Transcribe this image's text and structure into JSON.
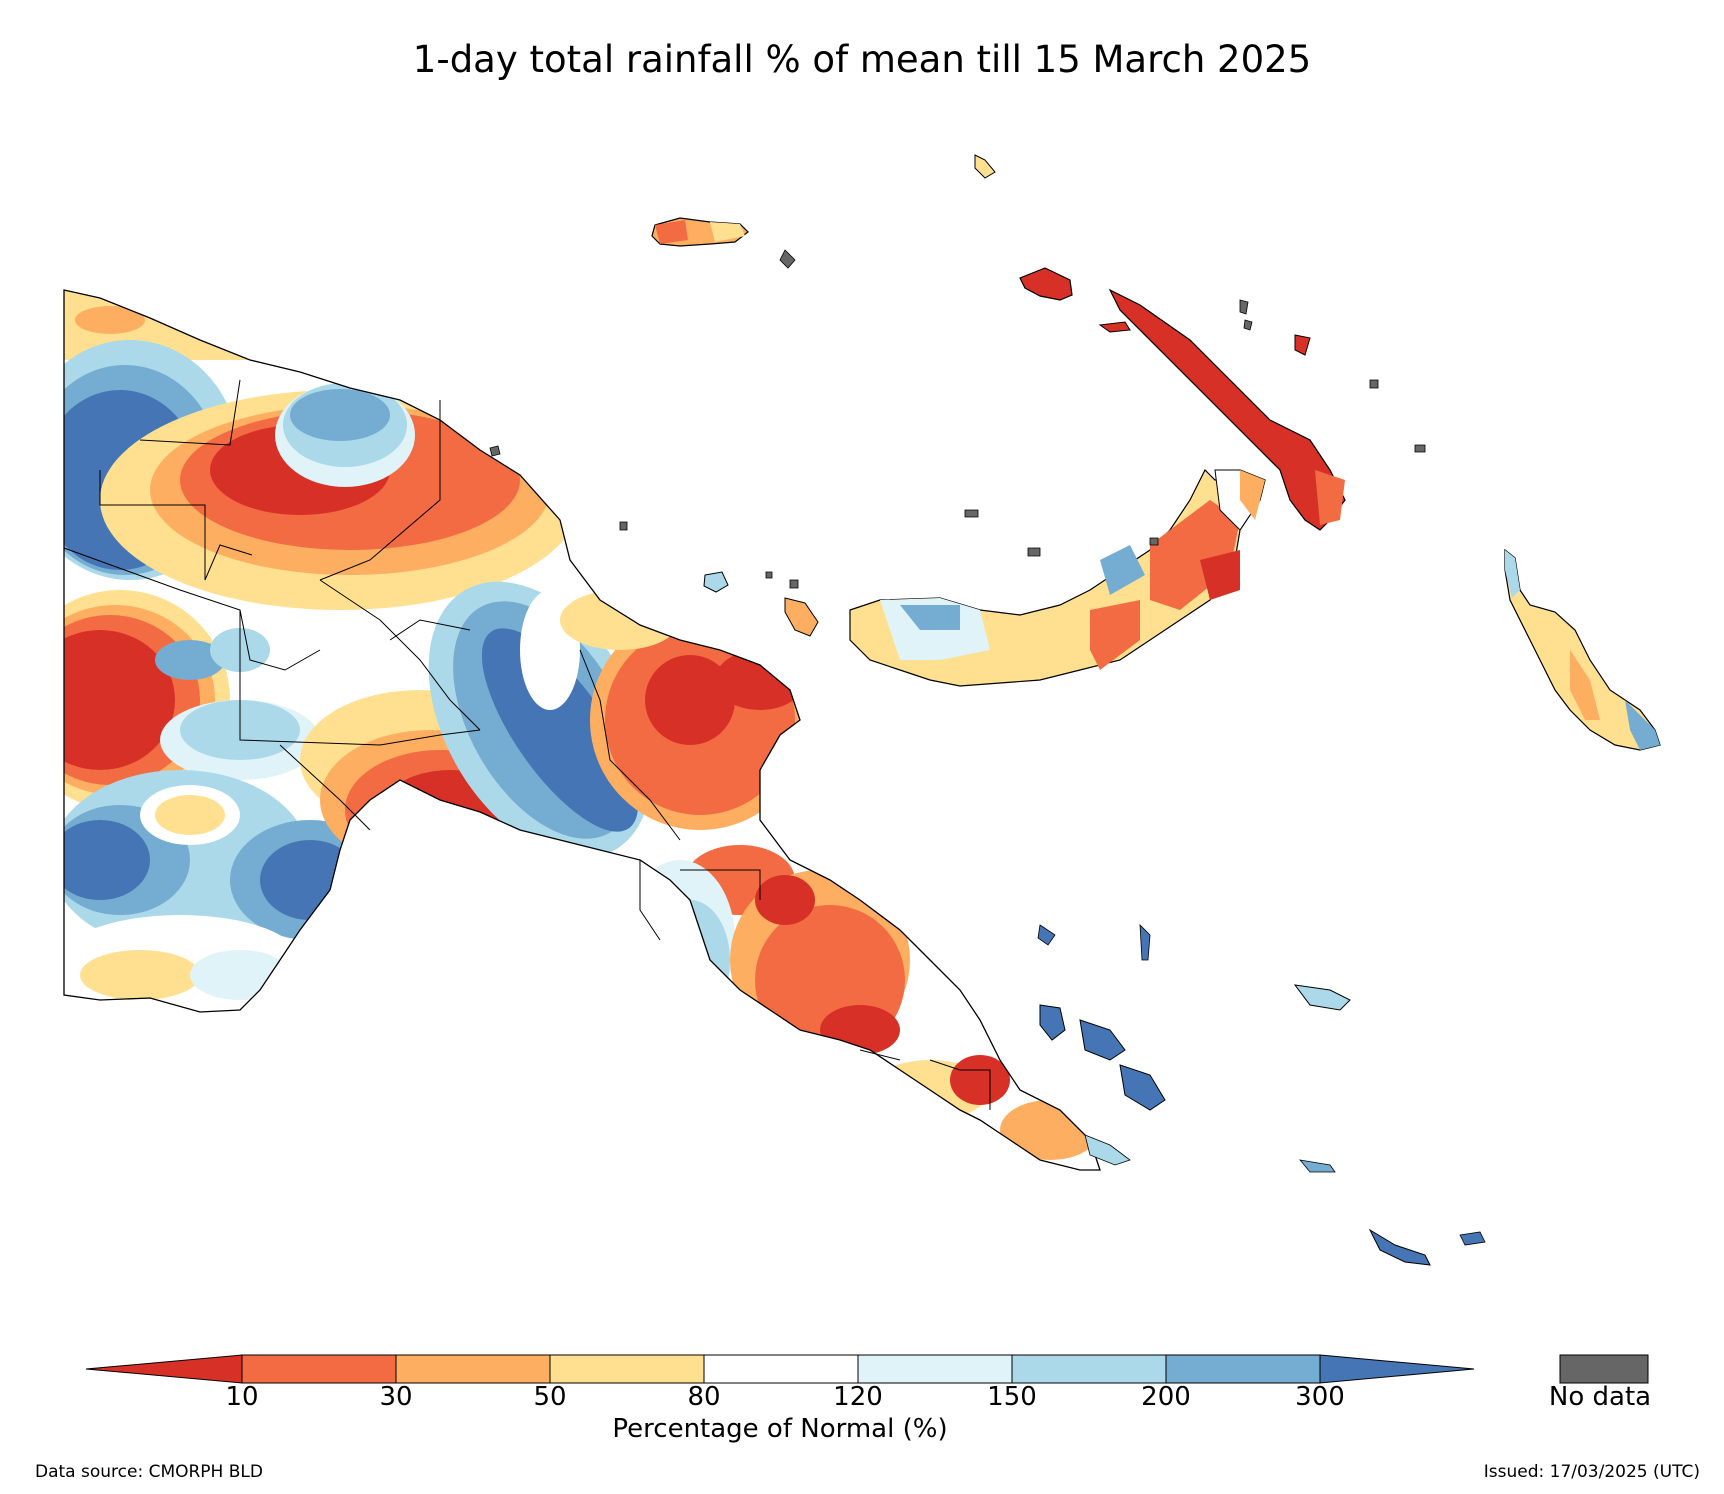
{
  "title": "1-day total rainfall % of mean till 15 March 2025",
  "legend": {
    "colors": [
      "#d73027",
      "#f26b43",
      "#fdae61",
      "#fee090",
      "#ffffff",
      "#e0f3f8",
      "#abd9e9",
      "#74add1",
      "#4575b4"
    ],
    "ticks": [
      "10",
      "30",
      "50",
      "80",
      "120",
      "150",
      "200",
      "300"
    ],
    "axis_label": "Percentage of Normal (%)",
    "no_data_label": "No data",
    "no_data_color": "#666666"
  },
  "footer": {
    "source": "Data source: CMORPH BLD",
    "issued": "Issued: 17/03/2025 (UTC)"
  }
}
